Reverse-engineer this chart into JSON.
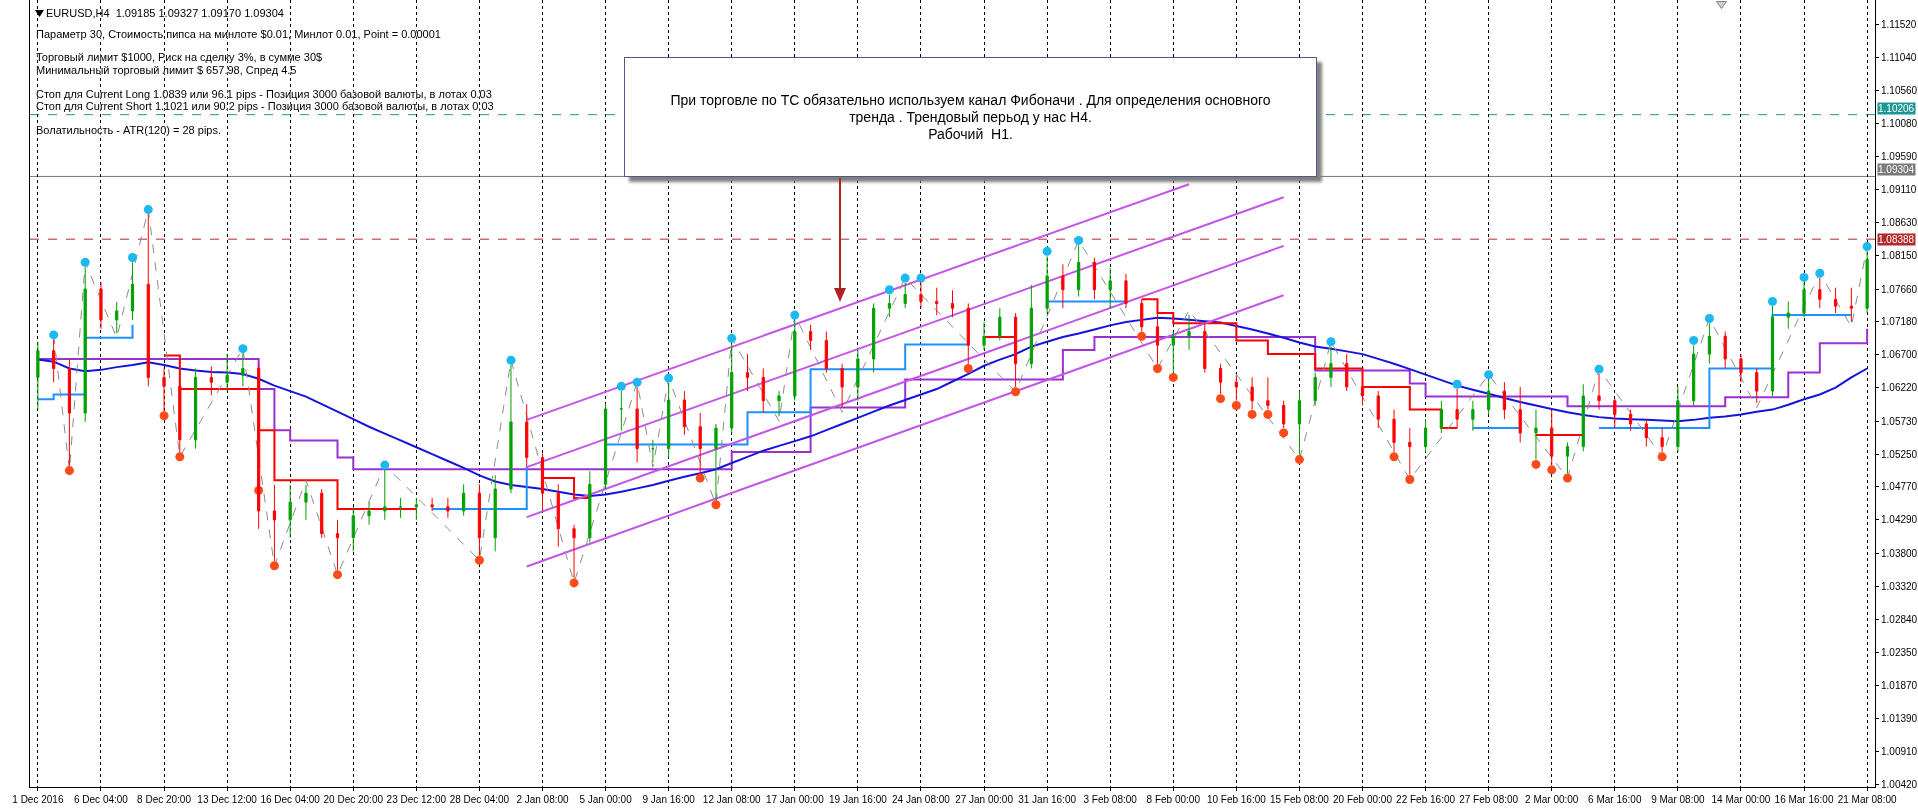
{
  "chart_data": {
    "type": "candlestick",
    "title": "EURUSD,H4  1.09185 1.09327 1.09170 1.09304",
    "annotations": [
      "Параметр 30, Стоимость пипса на минлоте $0.01, Минлот 0.01, Point = 0.00001",
      "Торговый лимит $1000, Риск на сделку 3%, в сумме 30$",
      "Минимальный торговый лимит $ 657.98, Спред 4.5",
      "Стоп для Current Long 1.0839 или 96.1 pips - Позиция 3000 базовой валюты, в лотах 0.03",
      "Стоп для Current Short 1.1021 или 90.2 pips - Позиция 3000 базовой валюты, в лотах 0.03",
      "Волатильность - ATR(120) = 28 pips.",
      "При торговле по ТС обязательно используем канал Фибоначи . Для определения основного\nтренда . Трендовый перьод у нас H4.\nРабочий  H1."
    ],
    "categories": [
      "1 Dec 2016",
      null,
      null,
      null,
      "6 Dec 04:00",
      null,
      null,
      null,
      "8 Dec 20:00",
      null,
      null,
      null,
      "13 Dec 12:00",
      null,
      null,
      null,
      "16 Dec 04:00",
      null,
      null,
      null,
      "20 Dec 20:00",
      null,
      null,
      null,
      "23 Dec 12:00",
      null,
      null,
      null,
      "28 Dec 04:00",
      null,
      null,
      null,
      "2 Jan 08:00",
      null,
      null,
      null,
      "5 Jan 00:00",
      null,
      null,
      null,
      "9 Jan 16:00",
      null,
      null,
      null,
      "12 Jan 08:00",
      null,
      null,
      null,
      "17 Jan 00:00",
      null,
      null,
      null,
      "19 Jan 16:00",
      null,
      null,
      null,
      "24 Jan 08:00",
      null,
      null,
      null,
      "27 Jan 00:00",
      null,
      null,
      null,
      "31 Jan 16:00",
      null,
      null,
      null,
      "3 Feb 08:00",
      null,
      null,
      null,
      "8 Feb 00:00",
      null,
      null,
      null,
      "10 Feb 16:00",
      null,
      null,
      null,
      "15 Feb 08:00",
      null,
      null,
      null,
      "20 Feb 00:00",
      null,
      null,
      null,
      "22 Feb 16:00",
      null,
      null,
      null,
      "27 Feb 08:00",
      null,
      null,
      null,
      "2 Mar 00:00",
      null,
      null,
      null,
      "6 Mar 16:00",
      null,
      null,
      null,
      "9 Mar 08:00",
      null,
      null,
      null,
      "14 Mar 00:00",
      null,
      null,
      null,
      "16 Mar 16:00",
      null,
      null,
      null,
      "21 Mar 08:00"
    ],
    "ohlc": [
      [
        1.0637,
        1.0689,
        1.059,
        1.0676
      ],
      [
        1.0676,
        1.0692,
        1.063,
        1.065
      ],
      [
        1.065,
        1.0663,
        1.0508,
        1.0585
      ],
      [
        1.0585,
        1.0798,
        1.0572,
        1.0766
      ],
      [
        1.0766,
        1.0776,
        1.0708,
        1.0721
      ],
      [
        1.0721,
        1.0747,
        1.0702,
        1.0734
      ],
      [
        1.0734,
        1.0805,
        1.0721,
        1.0773
      ],
      [
        1.0773,
        1.0875,
        1.0624,
        1.0637
      ],
      [
        1.0637,
        1.065,
        1.0588,
        1.0624
      ],
      [
        1.0624,
        1.0669,
        1.0528,
        1.0546
      ],
      [
        1.0546,
        1.065,
        1.0533,
        1.0637
      ],
      [
        1.0637,
        1.0653,
        1.0611,
        1.063
      ],
      [
        1.063,
        1.0671,
        1.0617,
        1.064
      ],
      [
        1.064,
        1.0672,
        1.0624,
        1.065
      ],
      [
        1.065,
        1.0656,
        1.0416,
        1.0442
      ],
      [
        1.0442,
        1.048,
        1.0369,
        1.0429
      ],
      [
        1.0429,
        1.048,
        1.0403,
        1.0455
      ],
      [
        1.0455,
        1.048,
        1.0429,
        1.0468
      ],
      [
        1.0468,
        1.0474,
        1.0403,
        1.0409
      ],
      [
        1.0409,
        1.0429,
        1.0356,
        1.0403
      ],
      [
        1.0403,
        1.0448,
        1.0383,
        1.0435
      ],
      [
        1.0435,
        1.0455,
        1.0422,
        1.0442
      ],
      [
        1.0442,
        1.0502,
        1.0429,
        1.0448
      ],
      [
        1.0448,
        1.0461,
        1.0432,
        1.0448
      ],
      [
        1.0448,
        1.0461,
        1.0429,
        1.0451
      ],
      [
        1.0451,
        1.0461,
        1.0442,
        1.0448
      ],
      [
        1.0448,
        1.0461,
        1.0432,
        1.0442
      ],
      [
        1.0442,
        1.0481,
        1.0435,
        1.0468
      ],
      [
        1.0468,
        1.0481,
        1.0377,
        1.0403
      ],
      [
        1.0403,
        1.0494,
        1.0383,
        1.0474
      ],
      [
        1.0474,
        1.0655,
        1.0468,
        1.0572
      ],
      [
        1.0572,
        1.0598,
        1.0507,
        1.052
      ],
      [
        1.052,
        1.0526,
        1.0442,
        1.0468
      ],
      [
        1.0468,
        1.0481,
        1.039,
        1.0416
      ],
      [
        1.0416,
        1.0422,
        1.0344,
        1.0403
      ],
      [
        1.0403,
        1.05,
        1.0396,
        1.0481
      ],
      [
        1.0481,
        1.0598,
        1.0474,
        1.0591
      ],
      [
        1.0591,
        1.0617,
        1.0559,
        1.0591
      ],
      [
        1.0591,
        1.0623,
        1.0513,
        1.0533
      ],
      [
        1.0533,
        1.0546,
        1.0513,
        1.0533
      ],
      [
        1.0533,
        1.0629,
        1.052,
        1.0604
      ],
      [
        1.0604,
        1.0617,
        1.0553,
        1.0565
      ],
      [
        1.0565,
        1.0585,
        1.0497,
        1.0533
      ],
      [
        1.0533,
        1.0569,
        1.0458,
        1.0563
      ],
      [
        1.0563,
        1.0687,
        1.0556,
        1.0644
      ],
      [
        1.0644,
        1.0671,
        1.0617,
        1.0637
      ],
      [
        1.0637,
        1.065,
        1.0586,
        1.0603
      ],
      [
        1.0603,
        1.0617,
        1.058,
        1.061
      ],
      [
        1.061,
        1.0721,
        1.0603,
        1.0704
      ],
      [
        1.0704,
        1.0714,
        1.0677,
        1.0691
      ],
      [
        1.0691,
        1.0704,
        1.0644,
        1.065
      ],
      [
        1.065,
        1.0657,
        1.0593,
        1.0623
      ],
      [
        1.0623,
        1.0677,
        1.0603,
        1.0664
      ],
      [
        1.0664,
        1.0745,
        1.0644,
        1.0738
      ],
      [
        1.0738,
        1.0758,
        1.0725,
        1.0745
      ],
      [
        1.0745,
        1.0775,
        1.0738,
        1.0758
      ],
      [
        1.0758,
        1.0775,
        1.0738,
        1.0748
      ],
      [
        1.0748,
        1.0768,
        1.0728,
        1.0745
      ],
      [
        1.0745,
        1.0764,
        1.0725,
        1.0738
      ],
      [
        1.0738,
        1.0745,
        1.0657,
        1.0684
      ],
      [
        1.0684,
        1.0718,
        1.0677,
        1.0697
      ],
      [
        1.0697,
        1.0738,
        1.0691,
        1.0725
      ],
      [
        1.0725,
        1.0731,
        1.0623,
        1.0657
      ],
      [
        1.0657,
        1.0772,
        1.065,
        1.0738
      ],
      [
        1.0738,
        1.0814,
        1.0731,
        1.0785
      ],
      [
        1.0785,
        1.0802,
        1.0738,
        1.0765
      ],
      [
        1.0765,
        1.083,
        1.0755,
        1.0805
      ],
      [
        1.0805,
        1.0812,
        1.0751,
        1.0765
      ],
      [
        1.0765,
        1.0797,
        1.0738,
        1.0778
      ],
      [
        1.0778,
        1.0788,
        1.0738,
        1.0745
      ],
      [
        1.0745,
        1.0751,
        1.0704,
        1.0711
      ],
      [
        1.0711,
        1.0731,
        1.0657,
        1.0684
      ],
      [
        1.0684,
        1.0704,
        1.0644,
        1.0697
      ],
      [
        1.0697,
        1.0728,
        1.0677,
        1.0704
      ],
      [
        1.0704,
        1.0718,
        1.0644,
        1.065
      ],
      [
        1.065,
        1.0657,
        1.0613,
        1.063
      ],
      [
        1.063,
        1.064,
        1.0603,
        1.0623
      ],
      [
        1.0623,
        1.0637,
        1.059,
        1.0603
      ],
      [
        1.0603,
        1.0637,
        1.059,
        1.0596
      ],
      [
        1.0596,
        1.0603,
        1.0563,
        1.0569
      ],
      [
        1.0569,
        1.0617,
        1.0524,
        1.0603
      ],
      [
        1.0603,
        1.0644,
        1.0596,
        1.0637
      ],
      [
        1.0637,
        1.0682,
        1.0623,
        1.0657
      ],
      [
        1.0657,
        1.0671,
        1.0617,
        1.0623
      ],
      [
        1.0623,
        1.063,
        1.0596,
        1.061
      ],
      [
        1.061,
        1.0617,
        1.0563,
        1.0576
      ],
      [
        1.0576,
        1.059,
        1.0528,
        1.0542
      ],
      [
        1.0542,
        1.0563,
        1.0495,
        1.0536
      ],
      [
        1.0536,
        1.0576,
        1.0529,
        1.0563
      ],
      [
        1.0563,
        1.0603,
        1.0556,
        1.059
      ],
      [
        1.059,
        1.062,
        1.0563,
        1.0576
      ],
      [
        1.0576,
        1.0603,
        1.0559,
        1.059
      ],
      [
        1.059,
        1.0634,
        1.0583,
        1.0617
      ],
      [
        1.0617,
        1.063,
        1.0576,
        1.059
      ],
      [
        1.059,
        1.0623,
        1.0542,
        1.0556
      ],
      [
        1.0556,
        1.059,
        1.0517,
        1.0563
      ],
      [
        1.0563,
        1.059,
        1.0509,
        1.0522
      ],
      [
        1.0522,
        1.0542,
        1.0497,
        1.0536
      ],
      [
        1.0536,
        1.0627,
        1.0529,
        1.061
      ],
      [
        1.061,
        1.0642,
        1.059,
        1.0603
      ],
      [
        1.0603,
        1.0606,
        1.0564,
        1.0583
      ],
      [
        1.0583,
        1.059,
        1.0559,
        1.0569
      ],
      [
        1.0569,
        1.0576,
        1.0536,
        1.0549
      ],
      [
        1.0549,
        1.0563,
        1.0528,
        1.0536
      ],
      [
        1.0536,
        1.0623,
        1.0528,
        1.0603
      ],
      [
        1.0603,
        1.0684,
        1.0596,
        1.0671
      ],
      [
        1.0671,
        1.0716,
        1.0657,
        1.0697
      ],
      [
        1.0697,
        1.0704,
        1.065,
        1.0664
      ],
      [
        1.0664,
        1.0671,
        1.063,
        1.0644
      ],
      [
        1.0644,
        1.065,
        1.06,
        1.0617
      ],
      [
        1.0617,
        1.0741,
        1.061,
        1.0725
      ],
      [
        1.0725,
        1.0748,
        1.0708,
        1.0731
      ],
      [
        1.0731,
        1.0776,
        1.0725,
        1.0765
      ],
      [
        1.0765,
        1.0782,
        1.0738,
        1.0751
      ],
      [
        1.0751,
        1.0768,
        1.0731,
        1.0741
      ],
      [
        1.0741,
        1.0768,
        1.0718,
        1.0738
      ],
      [
        1.0738,
        1.0821,
        1.0731,
        1.0809
      ]
    ],
    "colors": [
      "#00a000",
      "#ff0000",
      "#ff0000",
      "#00a000",
      "#ff0000",
      "#00a000",
      "#00a000",
      "#ff0000",
      "#ff0000",
      "#ff0000",
      "#00a000",
      "#ff0000",
      "#00a000",
      "#00a000",
      "#ff0000",
      "#ff0000",
      "#00a000",
      "#00a000",
      "#ff0000",
      "#ff0000",
      "#00a000",
      "#00a000",
      "#00a000",
      "#00a000",
      "#00a000",
      "#ff0000",
      "#ff0000",
      "#00a000",
      "#ff0000",
      "#00a000",
      "#00a000",
      "#ff0000",
      "#ff0000",
      "#ff0000",
      "#ff0000",
      "#00a000",
      "#00a000",
      "#00a000",
      "#ff0000",
      "#00a000",
      "#00a000",
      "#ff0000",
      "#ff0000",
      "#00a000",
      "#00a000",
      "#ff0000",
      "#ff0000",
      "#00a000",
      "#00a000",
      "#ff0000",
      "#ff0000",
      "#ff0000",
      "#00a000",
      "#00a000",
      "#00a000",
      "#00a000",
      "#ff0000",
      "#ff0000",
      "#ff0000",
      "#ff0000",
      "#00a000",
      "#00a000",
      "#ff0000",
      "#00a000",
      "#00a000",
      "#ff0000",
      "#00a000",
      "#ff0000",
      "#00a000",
      "#ff0000",
      "#ff0000",
      "#ff0000",
      "#00a000",
      "#00a000",
      "#ff0000",
      "#ff0000",
      "#ff0000",
      "#ff0000",
      "#ff0000",
      "#ff0000",
      "#00a000",
      "#00a000",
      "#00a000",
      "#ff0000",
      "#ff0000",
      "#ff0000",
      "#ff0000",
      "#ff0000",
      "#00a000",
      "#00a000",
      "#ff0000",
      "#00a000",
      "#00a000",
      "#ff0000",
      "#ff0000",
      "#00a000",
      "#ff0000",
      "#00a000",
      "#00a000",
      "#ff0000",
      "#ff0000",
      "#ff0000",
      "#ff0000",
      "#ff0000",
      "#00a000",
      "#00a000",
      "#00a000",
      "#ff0000",
      "#ff0000",
      "#ff0000",
      "#00a000",
      "#00a000",
      "#00a000",
      "#ff0000",
      "#ff0000",
      "#ff0000",
      "#00a000"
    ],
    "series": [
      {
        "type": "step",
        "color": "#9b30d0",
        "values": [
          1.0664,
          1.0664,
          1.0664,
          1.0664,
          1.0664,
          1.0664,
          1.0664,
          1.0664,
          1.0664,
          1.0664,
          1.0664,
          1.0664,
          1.0664,
          1.0664,
          1.062,
          1.056,
          1.0545,
          1.0545,
          1.0545,
          1.052,
          1.0503,
          1.0503,
          1.0503,
          1.0503,
          1.0503,
          1.0503,
          1.0503,
          1.0503,
          1.0503,
          1.0503,
          1.0503,
          1.0503,
          1.0503,
          1.0503,
          1.0503,
          1.0503,
          1.0503,
          1.0503,
          1.0503,
          1.0503,
          1.0503,
          1.0503,
          1.0503,
          1.0503,
          1.0528,
          1.0528,
          1.0528,
          1.0528,
          1.0528,
          1.0593,
          1.0593,
          1.0593,
          1.0593,
          1.0593,
          1.0593,
          1.0634,
          1.0634,
          1.0634,
          1.0634,
          1.0634,
          1.0634,
          1.0634,
          1.0634,
          1.0634,
          1.0634,
          1.0677,
          1.0677,
          1.0696,
          1.0696,
          1.0696,
          1.0696,
          1.0696,
          1.0696,
          1.0696,
          1.0696,
          1.0696,
          1.0696,
          1.0696,
          1.0696,
          1.0696,
          1.0696,
          1.0647,
          1.0647,
          1.0647,
          1.0647,
          1.0647,
          1.0647,
          1.0628,
          1.0609,
          1.0609,
          1.0609,
          1.0609,
          1.0609,
          1.0609,
          1.0609,
          1.0609,
          1.0609,
          1.0595,
          1.0595,
          1.0595,
          1.0595,
          1.0595,
          1.0595,
          1.0595,
          1.0595,
          1.0595,
          1.0595,
          1.0608,
          1.0608,
          1.0608,
          1.0608,
          1.0644,
          1.0644,
          1.0687,
          1.0687,
          1.0687,
          1.0708
        ]
      },
      {
        "type": "line",
        "color": "#1414dc",
        "values": [
          1.0663,
          1.066,
          1.065,
          1.0646,
          1.0648,
          1.0652,
          1.0655,
          1.0659,
          1.0655,
          1.065,
          1.0647,
          1.0645,
          1.0644,
          1.0642,
          1.0635,
          1.0625,
          1.0617,
          1.0609,
          1.0598,
          1.0587,
          1.0576,
          1.0565,
          1.0555,
          1.0545,
          1.0535,
          1.0525,
          1.0515,
          1.0505,
          1.0494,
          1.0485,
          1.048,
          1.0477,
          1.0474,
          1.047,
          1.0466,
          1.0464,
          1.0466,
          1.047,
          1.0475,
          1.048,
          1.0486,
          1.0492,
          1.0497,
          1.0503,
          1.0512,
          1.0521,
          1.053,
          1.0537,
          1.0544,
          1.0551,
          1.056,
          1.0569,
          1.0578,
          1.0587,
          1.0596,
          1.0604,
          1.0612,
          1.062,
          1.0631,
          1.0642,
          1.0654,
          1.0663,
          1.0671,
          1.0682,
          1.0689,
          1.0696,
          1.0701,
          1.0707,
          1.0713,
          1.0718,
          1.0721,
          1.0724,
          1.0723,
          1.0721,
          1.0719,
          1.0717,
          1.0712,
          1.0707,
          1.0701,
          1.0695,
          1.0688,
          1.0682,
          1.0679,
          1.0675,
          1.0671,
          1.0664,
          1.0657,
          1.0649,
          1.0641,
          1.0633,
          1.0625,
          1.0619,
          1.0613,
          1.0607,
          1.0601,
          1.0596,
          1.0591,
          1.0586,
          1.0582,
          1.0579,
          1.0577,
          1.0576,
          1.0575,
          1.0574,
          1.0573,
          1.0575,
          1.0578,
          1.058,
          1.0583,
          1.0587,
          1.059,
          1.0597,
          1.0605,
          1.0612,
          1.0622,
          1.0637,
          1.065
        ]
      },
      {
        "type": "step",
        "color": "#ff0000",
        "values": [
          null,
          null,
          null,
          null,
          null,
          null,
          null,
          null,
          1.0669,
          1.062,
          1.062,
          1.062,
          1.062,
          1.062,
          1.056,
          1.0487,
          1.0487,
          1.0487,
          1.0487,
          1.0445,
          1.0445,
          1.0445,
          1.0445,
          1.0445,
          1.0445,
          null,
          null,
          null,
          null,
          null,
          null,
          null,
          1.049,
          1.049,
          1.0461,
          1.0461,
          null,
          null,
          null,
          null,
          null,
          null,
          null,
          null,
          null,
          null,
          null,
          null,
          null,
          null,
          null,
          null,
          null,
          null,
          null,
          null,
          null,
          null,
          null,
          null,
          1.0696,
          1.0696,
          1.0696,
          null,
          null,
          null,
          null,
          null,
          null,
          null,
          1.0751,
          1.0731,
          1.0716,
          1.0716,
          1.0716,
          1.0716,
          1.0691,
          1.0691,
          1.0671,
          1.0671,
          1.0671,
          1.065,
          1.065,
          1.065,
          1.0623,
          1.0623,
          1.0623,
          1.059,
          1.059,
          1.0563,
          1.0563,
          null,
          null,
          null,
          null,
          1.0553,
          1.0553,
          1.0553,
          1.0553,
          null,
          null,
          null,
          null,
          null,
          null,
          null,
          null,
          null,
          null,
          null,
          null,
          null,
          null,
          null,
          null,
          null,
          null
        ]
      },
      {
        "type": "step",
        "color": "#1e90ff",
        "values": [
          1.0605,
          1.0612,
          1.0612,
          1.0695,
          1.0695,
          1.0695,
          1.0714,
          null,
          null,
          null,
          null,
          null,
          null,
          null,
          null,
          null,
          null,
          null,
          null,
          null,
          null,
          null,
          null,
          null,
          null,
          1.0445,
          1.0445,
          1.0445,
          1.0445,
          1.0445,
          1.0445,
          1.0507,
          null,
          null,
          null,
          null,
          1.0539,
          1.0539,
          1.0539,
          1.0539,
          1.0539,
          1.0539,
          1.0539,
          1.0539,
          1.0539,
          1.0586,
          1.0586,
          1.0586,
          1.0586,
          1.0649,
          1.0649,
          1.0649,
          1.0649,
          1.0649,
          1.0649,
          1.0685,
          1.0685,
          1.0685,
          1.0685,
          1.0685,
          null,
          null,
          null,
          null,
          1.0748,
          1.0748,
          1.0748,
          1.0748,
          1.0748,
          1.0748,
          null,
          null,
          null,
          null,
          null,
          null,
          null,
          null,
          null,
          null,
          null,
          null,
          null,
          null,
          null,
          null,
          null,
          null,
          null,
          null,
          null,
          1.0563,
          1.0563,
          1.0563,
          1.0563,
          null,
          null,
          null,
          null,
          1.0563,
          1.0563,
          1.0563,
          1.0563,
          1.0563,
          1.0563,
          1.0563,
          1.065,
          1.065,
          1.065,
          1.065,
          1.0728,
          1.0728,
          1.0728,
          1.0728,
          1.0728,
          1.0728,
          null
        ]
      },
      {
        "type": "line",
        "color": "#c455e8",
        "values": [
          null,
          null,
          null,
          null,
          null,
          null,
          null,
          null,
          null,
          null,
          null,
          null,
          null,
          null,
          null,
          null,
          null,
          null,
          null,
          null,
          null,
          null,
          null,
          null,
          null,
          null,
          null,
          null,
          null,
          null,
          null,
          1.0575,
          null,
          null,
          null,
          null,
          null,
          null,
          null,
          null,
          null,
          null,
          null,
          null,
          null,
          null,
          null,
          null,
          null,
          null,
          null,
          null,
          null,
          null,
          null,
          null,
          null,
          null,
          null,
          null,
          null,
          null,
          null,
          null,
          null,
          null,
          null,
          null,
          null,
          null,
          null,
          null,
          null,
          1.0919,
          null,
          null,
          null,
          null,
          null,
          null,
          null,
          null,
          null,
          null,
          null,
          null,
          null,
          null,
          null,
          null,
          null,
          null,
          null,
          null,
          null,
          null,
          null,
          null,
          null,
          null,
          null,
          null,
          null,
          null,
          null,
          null,
          null,
          null,
          null,
          null,
          null,
          null,
          null,
          null,
          null,
          null,
          null
        ]
      },
      {
        "type": "line",
        "color": "#c455e8",
        "values": [
          null,
          null,
          null,
          null,
          null,
          null,
          null,
          null,
          null,
          null,
          null,
          null,
          null,
          null,
          null,
          null,
          null,
          null,
          null,
          null,
          null,
          null,
          null,
          null,
          null,
          null,
          null,
          null,
          null,
          null,
          null,
          1.0506,
          null,
          null,
          null,
          null,
          null,
          null,
          null,
          null,
          null,
          null,
          null,
          null,
          null,
          null,
          null,
          null,
          null,
          null,
          null,
          null,
          null,
          null,
          null,
          null,
          null,
          null,
          null,
          null,
          null,
          null,
          null,
          null,
          null,
          null,
          null,
          null,
          null,
          null,
          null,
          null,
          null,
          null,
          null,
          null,
          null,
          null,
          null,
          1.09,
          null,
          null,
          null,
          null,
          null,
          null,
          null,
          null,
          null,
          null,
          null,
          null,
          null,
          null,
          null,
          null,
          null,
          null,
          null,
          null,
          null,
          null,
          null,
          null,
          null,
          null,
          null,
          null,
          null,
          null,
          null,
          null,
          null,
          null,
          null,
          null,
          null
        ]
      },
      {
        "type": "line",
        "color": "#c455e8",
        "values": [
          null,
          null,
          null,
          null,
          null,
          null,
          null,
          null,
          null,
          null,
          null,
          null,
          null,
          null,
          null,
          null,
          null,
          null,
          null,
          null,
          null,
          null,
          null,
          null,
          null,
          null,
          null,
          null,
          null,
          null,
          null,
          1.0433,
          null,
          null,
          null,
          null,
          null,
          null,
          null,
          null,
          null,
          null,
          null,
          null,
          null,
          null,
          null,
          null,
          null,
          null,
          null,
          null,
          null,
          null,
          null,
          null,
          null,
          null,
          null,
          null,
          null,
          null,
          null,
          null,
          null,
          null,
          null,
          null,
          null,
          null,
          null,
          null,
          null,
          null,
          null,
          null,
          null,
          null,
          null,
          1.0829,
          null,
          null,
          null,
          null,
          null,
          null,
          null,
          null,
          null,
          null,
          null,
          null,
          null,
          null,
          null,
          null,
          null,
          null,
          null,
          null,
          null,
          null,
          null,
          null,
          null,
          null,
          null,
          null,
          null,
          null,
          null,
          null,
          null,
          null,
          null,
          null,
          null
        ]
      },
      {
        "type": "line",
        "color": "#c455e8",
        "values": [
          null,
          null,
          null,
          null,
          null,
          null,
          null,
          null,
          null,
          null,
          null,
          null,
          null,
          null,
          null,
          null,
          null,
          null,
          null,
          null,
          null,
          null,
          null,
          null,
          null,
          null,
          null,
          null,
          null,
          null,
          null,
          1.0361,
          null,
          null,
          null,
          null,
          null,
          null,
          null,
          null,
          null,
          null,
          null,
          null,
          null,
          null,
          null,
          null,
          null,
          null,
          null,
          null,
          null,
          null,
          null,
          null,
          null,
          null,
          null,
          null,
          null,
          null,
          null,
          null,
          null,
          null,
          null,
          null,
          null,
          null,
          null,
          null,
          null,
          null,
          null,
          null,
          null,
          null,
          null,
          1.0757,
          null,
          null,
          null,
          null,
          null,
          null,
          null,
          null,
          null,
          null,
          null,
          null,
          null,
          null,
          null,
          null,
          null,
          null,
          null,
          null,
          null,
          null,
          null,
          null,
          null,
          null,
          null,
          null,
          null,
          null,
          null,
          null,
          null,
          null,
          null,
          null,
          null
        ]
      },
      {
        "type": "line",
        "color": "#8c8c8c",
        "line_style": "dashed",
        "values": [
          null,
          1.0699,
          1.0501,
          1.0805,
          null,
          1.0695,
          null,
          1.0882,
          null,
          1.0521,
          null,
          null,
          null,
          1.0679,
          null,
          1.0362,
          null,
          1.0487,
          null,
          1.0349,
          null,
          null,
          1.0509,
          null,
          null,
          null,
          null,
          null,
          1.037,
          null,
          1.0662,
          null,
          null,
          null,
          1.0337,
          null,
          null,
          null,
          1.063,
          1.0506,
          1.0636,
          null,
          null,
          1.0451,
          1.0694,
          null,
          null,
          1.0573,
          1.0728,
          null,
          null,
          1.0586,
          null,
          null,
          null,
          1.0782,
          null,
          null,
          null,
          null,
          null,
          null,
          1.0616,
          null,
          null,
          null,
          1.0837,
          null,
          null,
          null,
          null,
          1.065,
          null,
          1.0735,
          null,
          null,
          null,
          null,
          null,
          null,
          1.0517,
          null,
          1.0689,
          null,
          null,
          null,
          null,
          1.0488,
          null,
          null,
          null,
          null,
          1.0641,
          null,
          null,
          null,
          null,
          1.049,
          null,
          1.0649,
          null,
          null,
          null,
          1.0521,
          null,
          null,
          1.0723,
          null,
          null,
          1.0593,
          null,
          null,
          null,
          1.0789,
          null,
          1.0711,
          1.0828
        ]
      },
      {
        "type": "scatter",
        "color": "#1cb8f0",
        "marker": "circle",
        "values": [
          null,
          1.0699,
          null,
          1.0805,
          null,
          null,
          1.0812,
          1.0882,
          null,
          null,
          null,
          null,
          null,
          1.0679,
          null,
          null,
          null,
          null,
          null,
          null,
          null,
          null,
          1.0509,
          null,
          null,
          null,
          null,
          null,
          null,
          null,
          1.0662,
          null,
          null,
          null,
          null,
          null,
          null,
          1.0624,
          1.063,
          null,
          1.0636,
          null,
          null,
          null,
          1.0694,
          null,
          null,
          null,
          1.0728,
          null,
          null,
          null,
          null,
          null,
          1.0765,
          1.0782,
          1.0782,
          null,
          null,
          null,
          null,
          null,
          null,
          null,
          1.0821,
          null,
          1.0837,
          null,
          null,
          null,
          null,
          null,
          null,
          null,
          null,
          null,
          null,
          null,
          null,
          null,
          null,
          null,
          1.0689,
          null,
          null,
          null,
          null,
          null,
          null,
          null,
          1.0627,
          null,
          1.0641,
          null,
          null,
          null,
          null,
          null,
          null,
          1.0649,
          null,
          null,
          null,
          null,
          null,
          1.0691,
          1.0723,
          null,
          null,
          null,
          1.0748,
          null,
          1.0783,
          1.0789,
          null,
          null,
          1.0828
        ]
      },
      {
        "type": "scatter",
        "color": "#ff4a1a",
        "marker": "circle",
        "values": [
          null,
          null,
          1.0501,
          null,
          null,
          null,
          null,
          null,
          1.0581,
          1.0521,
          null,
          null,
          null,
          null,
          1.0472,
          1.0362,
          null,
          null,
          null,
          1.0349,
          null,
          null,
          null,
          null,
          null,
          null,
          null,
          null,
          1.037,
          null,
          null,
          null,
          null,
          null,
          1.0337,
          null,
          null,
          null,
          null,
          null,
          null,
          null,
          1.049,
          1.0451,
          null,
          null,
          null,
          null,
          null,
          null,
          null,
          null,
          null,
          null,
          null,
          null,
          null,
          null,
          null,
          1.065,
          null,
          null,
          1.0616,
          null,
          null,
          null,
          null,
          null,
          null,
          null,
          1.0697,
          1.065,
          1.0637,
          null,
          null,
          1.0606,
          1.0596,
          1.0583,
          1.0583,
          1.0556,
          1.0517,
          null,
          null,
          null,
          null,
          null,
          1.0521,
          1.0488,
          null,
          null,
          null,
          null,
          null,
          null,
          null,
          1.051,
          1.0502,
          1.049,
          null,
          null,
          null,
          null,
          null,
          1.0521,
          null,
          null,
          null,
          null,
          null,
          null,
          null,
          null,
          null,
          null,
          null,
          null,
          null
        ]
      }
    ],
    "ylim": [
      1.0039,
      1.1188
    ],
    "yticks": [
      {
        "value": 1.1152,
        "label": "1.11520"
      },
      {
        "value": 1.1104,
        "label": "1.11040"
      },
      {
        "value": 1.1056,
        "label": "1.10560"
      },
      {
        "value": 1.1008,
        "label": "1.10080"
      },
      {
        "value": 1.0959,
        "label": "1.09590"
      },
      {
        "value": 1.0911,
        "label": "1.09110"
      },
      {
        "value": 1.0863,
        "label": "1.08630"
      },
      {
        "value": 1.0815,
        "label": "1.08150"
      },
      {
        "value": 1.0766,
        "label": "1.07660"
      },
      {
        "value": 1.0718,
        "label": "1.07180"
      },
      {
        "value": 1.067,
        "label": "1.06700"
      },
      {
        "value": 1.0622,
        "label": "1.06220"
      },
      {
        "value": 1.0573,
        "label": "1.05730"
      },
      {
        "value": 1.0525,
        "label": "1.05250"
      },
      {
        "value": 1.0477,
        "label": "1.04770"
      },
      {
        "value": 1.0429,
        "label": "1.04290"
      },
      {
        "value": 1.038,
        "label": "1.03800"
      },
      {
        "value": 1.0332,
        "label": "1.03320"
      },
      {
        "value": 1.0284,
        "label": "1.02840"
      },
      {
        "value": 1.0235,
        "label": "1.02350"
      },
      {
        "value": 1.0187,
        "label": "1.01870"
      },
      {
        "value": 1.0139,
        "label": "1.01390"
      },
      {
        "value": 1.0091,
        "label": "1.00910"
      },
      {
        "value": 1.0042,
        "label": "1.00420"
      }
    ],
    "ref_lines": [
      {
        "axis": "y",
        "value": 1.10206,
        "label": "1.10206",
        "color": "#1f9696",
        "line_style": "dashed"
      },
      {
        "axis": "y",
        "value": 1.09304,
        "label": "1.09304",
        "color": "#7a7a7a",
        "line_style": "solid"
      },
      {
        "axis": "y",
        "value": 1.08388,
        "label": "1.08388",
        "color": "#b22a2a",
        "line_style": "dashed"
      }
    ],
    "grid": "x"
  }
}
